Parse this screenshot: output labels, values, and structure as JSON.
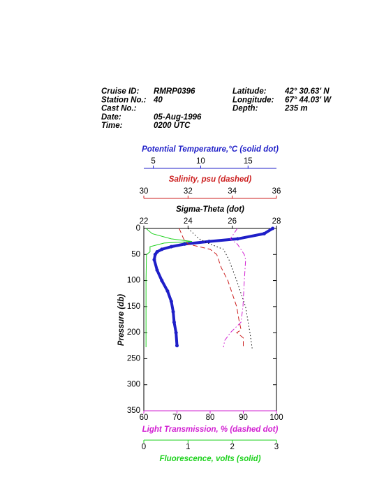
{
  "header": {
    "left": [
      {
        "label": "Cruise ID:",
        "value": "RMRP0396"
      },
      {
        "label": "Station No.:",
        "value": "40"
      },
      {
        "label": "Cast No.:"
      },
      {
        "label": "Date:",
        "value": "05-Aug-1996"
      },
      {
        "label": "Time:",
        "value": "0200 UTC"
      }
    ],
    "right": [
      {
        "label": "Latitude:",
        "value": "42° 30.63' N"
      },
      {
        "label": "Longitude:",
        "value": "67° 44.03' W"
      },
      {
        "label": "Depth:",
        "value": "235 m"
      }
    ]
  },
  "chart_data": {
    "type": "profile",
    "ylabel": "Pressure (db)",
    "ylim": [
      0,
      350
    ],
    "yticks": [
      0,
      50,
      100,
      150,
      200,
      250,
      300,
      350
    ],
    "series": [
      {
        "name": "Potential Temperature,°C (solid dot)",
        "side": "top",
        "color": "#1f1fc8",
        "line": "solid dot",
        "xlim": [
          4,
          18
        ],
        "xticks": [
          5,
          10,
          15
        ],
        "pressure": [
          0,
          10,
          20,
          25,
          30,
          35,
          40,
          45,
          50,
          60,
          80,
          100,
          120,
          140,
          160,
          180,
          200,
          225
        ],
        "values": [
          17.6,
          16.7,
          13.9,
          10.9,
          8.3,
          6.9,
          5.9,
          5.4,
          5.2,
          5.1,
          5.4,
          5.9,
          6.5,
          6.9,
          7.1,
          7.2,
          7.4,
          7.5
        ]
      },
      {
        "name": "Salinity, psu (dashed)",
        "side": "top",
        "color": "#cc1f1f",
        "line": "dashed",
        "xlim": [
          30,
          36
        ],
        "xticks": [
          30,
          32,
          34,
          36
        ],
        "pressure": [
          0,
          20,
          30,
          40,
          50,
          75,
          100,
          125,
          150,
          175,
          195,
          200,
          210,
          228
        ],
        "values": [
          31.6,
          31.8,
          32.0,
          33.0,
          33.3,
          33.5,
          33.8,
          34.0,
          34.2,
          34.3,
          34.4,
          34.2,
          34.5,
          34.5
        ]
      },
      {
        "name": "Sigma-Theta (dot)",
        "side": "top",
        "color": "#000000",
        "line": "dot",
        "xlim": [
          22,
          28
        ],
        "xticks": [
          22,
          24,
          26,
          28
        ],
        "pressure": [
          0,
          20,
          30,
          40,
          60,
          100,
          150,
          200,
          230
        ],
        "values": [
          24.0,
          24.5,
          25.0,
          25.6,
          25.85,
          26.2,
          26.6,
          26.8,
          26.9
        ]
      },
      {
        "name": "Light Transmission, % (dashed dot)",
        "side": "bottom",
        "color": "#d21fd2",
        "line": "dashed dot",
        "xlim": [
          60,
          100
        ],
        "xticks": [
          60,
          70,
          80,
          90,
          100
        ],
        "pressure": [
          0,
          20,
          30,
          50,
          60,
          100,
          150,
          180,
          200,
          215,
          228
        ],
        "values": [
          88.2,
          86.1,
          88.2,
          90.3,
          90.7,
          90.3,
          89.9,
          89.3,
          86.1,
          84.4,
          84.0
        ]
      },
      {
        "name": "Fluorescence, volts (solid)",
        "side": "bottom",
        "color": "#1fd21f",
        "line": "solid",
        "xlim": [
          0,
          3
        ],
        "xticks": [
          0,
          1,
          2,
          3
        ],
        "pressure": [
          0,
          10,
          20,
          25,
          28,
          35,
          45,
          50,
          100,
          228
        ],
        "values": [
          0.05,
          0.19,
          0.62,
          1.09,
          0.46,
          0.14,
          0.14,
          0.06,
          0.05,
          0.05
        ]
      }
    ]
  }
}
